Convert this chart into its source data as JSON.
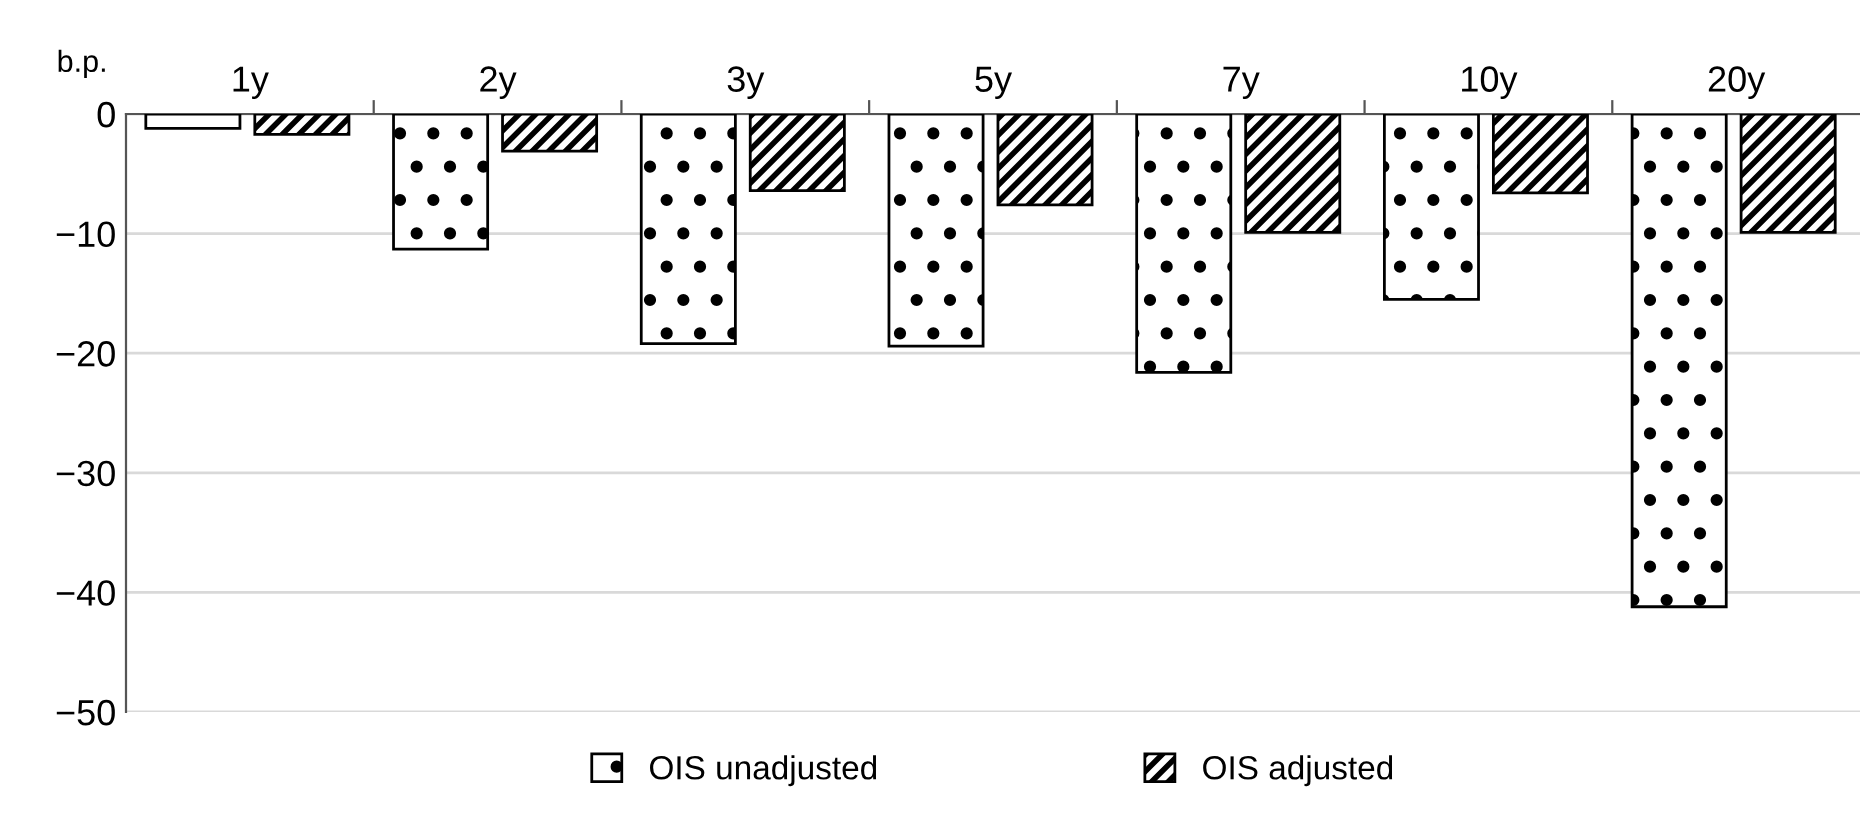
{
  "chart_data": {
    "type": "bar",
    "ylabel": "b.p.",
    "categories": [
      "1y",
      "2y",
      "3y",
      "5y",
      "7y",
      "10y",
      "20y"
    ],
    "series": [
      {
        "name": "OIS unadjusted",
        "color": "#000000",
        "values": [
          -1.2,
          -11.3,
          -19.2,
          -19.4,
          -21.6,
          -15.5,
          -41.2
        ]
      },
      {
        "name": "OIS adjusted",
        "color": "#000000",
        "values": [
          -1.7,
          -3.1,
          -6.4,
          -7.6,
          -9.9,
          -6.6,
          -9.9
        ]
      }
    ],
    "ylim": [
      -50,
      0
    ],
    "yticks": [
      {
        "value": -50,
        "label": "−50"
      },
      {
        "value": -40,
        "label": "−40"
      },
      {
        "value": -30,
        "label": "−30"
      },
      {
        "value": -20,
        "label": "−20"
      },
      {
        "value": -10,
        "label": "−10"
      },
      0
    ],
    "grid": "y",
    "legend": "bottom"
  }
}
